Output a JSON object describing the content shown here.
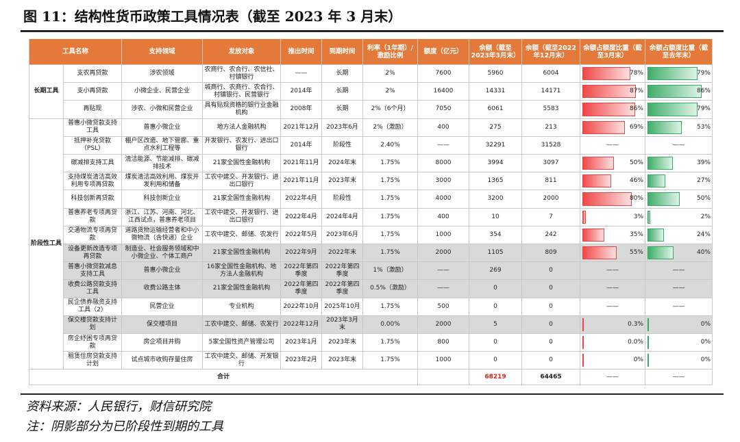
{
  "title": "图 11：结构性货币政策工具情况表（截至 2023 年 3 月末）",
  "table": {
    "header": [
      "工具名称",
      "支持领域",
      "发放对象",
      "推出时间",
      "到期时间",
      "利率（1年期）/激励比例",
      "额度（亿元）",
      "余额（截至2023年3月末）",
      "余额（截至2022年12月末）",
      "余额占额度比重（截至3月末）",
      "余额占额度比重（截至去年末）"
    ],
    "groups": [
      {
        "label": "长期工具",
        "rows": [
          {
            "shaded": false,
            "cells": [
              "支农再贷款",
              "涉农领域",
              "农商行、农合行、农信社、村镇银行",
              "——",
              "长期",
              "2%",
              "7600",
              "5960",
              "6004",
              "78%",
              "79%"
            ]
          },
          {
            "shaded": false,
            "cells": [
              "支小再贷款",
              "小微企业、民营企业",
              "城商行、农商行、农合行、村镇银行、民营银行",
              "2014年",
              "长期",
              "2%",
              "16400",
              "14331",
              "14171",
              "87%",
              "86%"
            ]
          },
          {
            "shaded": false,
            "cells": [
              "再贴现",
              "涉农、小微和民营企业",
              "具有贴现资格的银行业金融机构",
              "2008年",
              "长期",
              "2%（6个月）",
              "7050",
              "6061",
              "5583",
              "86%",
              "79%"
            ]
          }
        ]
      },
      {
        "label": "阶段性工具",
        "rows": [
          {
            "shaded": false,
            "cells": [
              "普惠小微贷款支持工具",
              "普惠小微企业",
              "地方法人金融机构",
              "2021年12月",
              "2023年6月",
              "2%（激励）",
              "400",
              "275",
              "213",
              "69%",
              "53%"
            ]
          },
          {
            "shaded": false,
            "cells": [
              "抵押补充贷款（PSL）",
              "棚户区改造、地下管廊、重点水利工程等",
              "开发银行、农发行、进出口银行",
              "2014年",
              "阶段性",
              "2.40%",
              "——",
              "32291",
              "31528",
              "——",
              "——"
            ]
          },
          {
            "shaded": false,
            "cells": [
              "碳减排支持工具",
              "清洁能源、节能减排、碳减排技术",
              "21家全国性金融机构",
              "2021年11月",
              "2024年末",
              "1.75%",
              "8000",
              "3994",
              "3097",
              "50%",
              "39%"
            ]
          },
          {
            "shaded": false,
            "cells": [
              "支持煤炭清洁高效利用专项再贷款",
              "煤炭清洁高效利用、煤炭开发利用和储备",
              "工农中建交、开发银行、进出口银行",
              "2021年11月",
              "2023年末",
              "1.75%",
              "3000",
              "1365",
              "811",
              "46%",
              "27%"
            ]
          },
          {
            "shaded": false,
            "cells": [
              "科技创新再贷款",
              "科技创新企业",
              "21家全国性金融机构",
              "2022年4月",
              "阶段性",
              "1.75%",
              "4000",
              "3200",
              "2000",
              "80%",
              "50%"
            ]
          },
          {
            "shaded": false,
            "cells": [
              "普惠养老专项再贷款",
              "浙江、江苏、河南、河北、江西试点，普惠养老项目",
              "工农中建交、开发银行、进出口银行",
              "2022年4月",
              "2024年4月",
              "1.75%",
              "400",
              "10",
              "7",
              "3%",
              "2%"
            ]
          },
          {
            "shaded": false,
            "cells": [
              "交通物流专项再贷款",
              "道路货物运输经营者和中小微物流（含快递）企业",
              "工农中建交、邮储、农发行",
              "2022年5月",
              "2023年6月",
              "1.75%",
              "1000",
              "354",
              "242",
              "35%",
              "24%"
            ]
          },
          {
            "shaded": true,
            "cells": [
              "设备更新改造专项再贷款",
              "制造业、社会服务领域和中小微企业、个体工商户",
              "21家全国性金融机构",
              "2022年9月",
              "2022年末",
              "1.75%",
              "2000",
              "1105",
              "809",
              "55%",
              "40%"
            ]
          },
          {
            "shaded": true,
            "cells": [
              "普惠小微贷款减息支持工具",
              "普惠小微企业",
              "16家全国性金融机构、地方法人金融机构",
              "2022年第四季度",
              "2022年第四季度",
              "1%（激励）",
              "——",
              "269",
              "0",
              "——",
              "——"
            ]
          },
          {
            "shaded": true,
            "cells": [
              "收费公路贷款支持工具",
              "收费公路主体",
              "21家全国性金融机构",
              "2022年第四季度",
              "2022年第四季度",
              "0.5%（激励）",
              "——",
              "0",
              "0",
              "——",
              "——"
            ]
          },
          {
            "shaded": false,
            "cells": [
              "民企债券融资支持工具（2）",
              "民营企业",
              "专业机构",
              "2022年10月",
              "2025年10月",
              "1.75%",
              "500",
              "0",
              "0",
              "——",
              "——"
            ]
          },
          {
            "shaded": true,
            "cells": [
              "保交楼贷款支持计划",
              "保交楼项目",
              "工农中建交、邮储、农发行",
              "2022年12月",
              "2023年3月末",
              "0.00%",
              "2000",
              "5",
              "0",
              "0.3%",
              "0%"
            ]
          },
          {
            "shaded": false,
            "cells": [
              "房企纾困专项再贷款",
              "房企项目并购",
              "5家全国性资产管理公司",
              "2023年1月",
              "2023年末",
              "1.75%",
              "800",
              "0",
              "0",
              "0.0%",
              "0%"
            ]
          },
          {
            "shaded": false,
            "cells": [
              "租赁住房贷款支持计划",
              "试点城市收购存量住房",
              "工农中建交、邮储、开发银行",
              "2023年2月",
              "2023年末",
              "1.75%",
              "1000",
              "0",
              "0",
              "0%",
              "0%"
            ]
          }
        ]
      }
    ],
    "total": {
      "label": "合计",
      "cells": [
        "68219",
        "64465",
        "——",
        "——"
      ]
    }
  },
  "footer": [
    "资料来源：人民银行，财信研究院",
    "注：阴影部分为已阶段性到期的工具"
  ]
}
